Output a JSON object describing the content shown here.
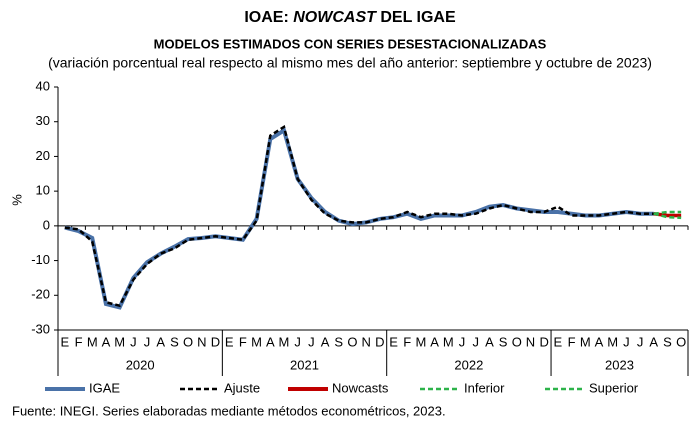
{
  "chart_data": {
    "type": "line",
    "title_parts": [
      "IOAE: ",
      "NOWCAST",
      " DEL IGAE"
    ],
    "subtitle": "MODELOS ESTIMADOS CON SERIES DESESTACIONALIZADAS",
    "subtitle2": "(variación porcentual real respecto al mismo mes del año anterior: septiembre y octubre de 2023)",
    "ylabel": "%",
    "source": "Fuente: INEGI. Series elaboradas mediante métodos econométricos, 2023.",
    "categories": [
      "E",
      "F",
      "M",
      "A",
      "M",
      "J",
      "J",
      "A",
      "S",
      "O",
      "N",
      "D",
      "E",
      "F",
      "M",
      "A",
      "M",
      "J",
      "J",
      "A",
      "S",
      "O",
      "N",
      "D",
      "E",
      "F",
      "M",
      "A",
      "M",
      "J",
      "J",
      "A",
      "S",
      "O",
      "N",
      "D",
      "E",
      "F",
      "M",
      "A",
      "M",
      "J",
      "J",
      "A",
      "S",
      "O"
    ],
    "year_groups": [
      "2020",
      "2021",
      "2022",
      "2023"
    ],
    "ylim": [
      -30,
      40
    ],
    "yticks": [
      -30,
      -20,
      -10,
      0,
      10,
      20,
      30,
      40
    ],
    "series": [
      {
        "name": "IGAE",
        "color": "#4a72a8",
        "dashed": false,
        "values": [
          -0.5,
          -1.5,
          -3.5,
          -22.5,
          -23.5,
          -15,
          -10.5,
          -8,
          -6,
          -3.8,
          -3.5,
          -3,
          -3.5,
          -4,
          2,
          25,
          27.5,
          13.5,
          8,
          4,
          1.5,
          0.5,
          1,
          2,
          2.5,
          3.5,
          2,
          3,
          3,
          3,
          4,
          5.5,
          6,
          5,
          4.5,
          4,
          4,
          3.5,
          3,
          3,
          3.5,
          4,
          3.5,
          3.5,
          null,
          null
        ]
      },
      {
        "name": "Ajuste",
        "color": "#000000",
        "dashed": true,
        "values": [
          -0.5,
          -1,
          -4.5,
          -22,
          -23,
          -15.5,
          -11,
          -8,
          -6.5,
          -4,
          -3.5,
          -3,
          -3.5,
          -4,
          1.5,
          26,
          28.5,
          13.5,
          7.5,
          3.5,
          1.5,
          1,
          1,
          2,
          2.5,
          4,
          2.5,
          3.5,
          3.5,
          3,
          3.5,
          5,
          6,
          5,
          4,
          4,
          5.5,
          3,
          3,
          3,
          3.5,
          4,
          3.5,
          3.5,
          3,
          3
        ]
      },
      {
        "name": "Nowcasts",
        "color": "#c00000",
        "dashed": false,
        "values": [
          null,
          null,
          null,
          null,
          null,
          null,
          null,
          null,
          null,
          null,
          null,
          null,
          null,
          null,
          null,
          null,
          null,
          null,
          null,
          null,
          null,
          null,
          null,
          null,
          null,
          null,
          null,
          null,
          null,
          null,
          null,
          null,
          null,
          null,
          null,
          null,
          null,
          null,
          null,
          null,
          null,
          null,
          null,
          3.5,
          3,
          3
        ]
      },
      {
        "name": "Inferior",
        "color": "#2db34a",
        "dashed": true,
        "values": [
          null,
          null,
          null,
          null,
          null,
          null,
          null,
          null,
          null,
          null,
          null,
          null,
          null,
          null,
          null,
          null,
          null,
          null,
          null,
          null,
          null,
          null,
          null,
          null,
          null,
          null,
          null,
          null,
          null,
          null,
          null,
          null,
          null,
          null,
          null,
          null,
          null,
          null,
          null,
          null,
          null,
          null,
          null,
          3.5,
          2.5,
          2.3
        ]
      },
      {
        "name": "Superior",
        "color": "#2db34a",
        "dashed": true,
        "values": [
          null,
          null,
          null,
          null,
          null,
          null,
          null,
          null,
          null,
          null,
          null,
          null,
          null,
          null,
          null,
          null,
          null,
          null,
          null,
          null,
          null,
          null,
          null,
          null,
          null,
          null,
          null,
          null,
          null,
          null,
          null,
          null,
          null,
          null,
          null,
          null,
          null,
          null,
          null,
          null,
          null,
          null,
          null,
          3.5,
          4,
          4
        ]
      }
    ]
  }
}
